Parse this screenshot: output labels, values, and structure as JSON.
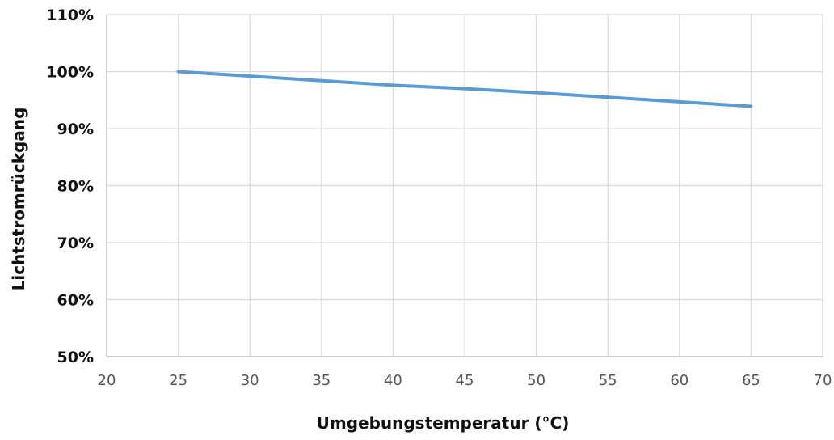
{
  "chart_data": {
    "type": "line",
    "title": "",
    "xlabel": "Umgebungstemperatur (°C)",
    "ylabel": "Lichtstromrückgang",
    "xlim": [
      20,
      70
    ],
    "ylim": [
      50,
      110
    ],
    "x_ticks": [
      "20",
      "25",
      "30",
      "35",
      "40",
      "45",
      "50",
      "55",
      "60",
      "65",
      "70"
    ],
    "y_ticks": [
      "110%",
      "100%",
      "90%",
      "80%",
      "70%",
      "60%",
      "50%"
    ],
    "grid": true,
    "legend": "none",
    "series": [
      {
        "color": "#5b9bd5",
        "x": [
          25,
          30,
          35,
          40,
          45,
          50,
          55,
          60,
          65
        ],
        "y": [
          100,
          99.2,
          98.4,
          97.6,
          97.0,
          96.3,
          95.5,
          94.7,
          93.9
        ]
      }
    ]
  }
}
